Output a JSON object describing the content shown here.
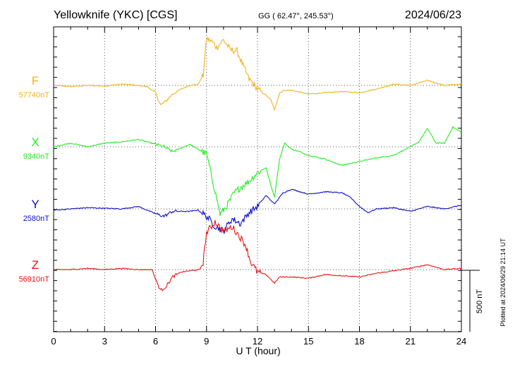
{
  "header": {
    "station": "Yellowknife (YKC)  [CGS]",
    "coords": "GG ( 62.47°, 245.53°)",
    "date": "2024/06/23"
  },
  "footer": {
    "plotted": "Plotted at 2024/06/29 21:14 UT"
  },
  "chart_data": {
    "type": "line",
    "xlabel": "U T (hour)",
    "xlim": [
      0,
      24
    ],
    "xticks": [
      "0",
      "3",
      "6",
      "9",
      "12",
      "15",
      "18",
      "21",
      "24"
    ],
    "scale_bar": {
      "label": "500 nT",
      "value_nT": 500
    },
    "series": [
      {
        "name": "F",
        "baseline_label": "57740nT",
        "baseline_nT": 57740,
        "color": "#f5b01e",
        "points": [
          [
            0,
            0
          ],
          [
            1,
            -10
          ],
          [
            2,
            0
          ],
          [
            3,
            -5
          ],
          [
            4,
            10
          ],
          [
            5,
            0
          ],
          [
            5.5,
            -10
          ],
          [
            6,
            -60
          ],
          [
            6.3,
            -160
          ],
          [
            6.6,
            -130
          ],
          [
            7,
            -70
          ],
          [
            7.5,
            -30
          ],
          [
            8,
            0
          ],
          [
            8.5,
            10
          ],
          [
            8.8,
            80
          ],
          [
            9,
            380
          ],
          [
            9.3,
            360
          ],
          [
            9.6,
            310
          ],
          [
            10,
            370
          ],
          [
            10.4,
            290
          ],
          [
            10.8,
            280
          ],
          [
            11,
            210
          ],
          [
            11.5,
            50
          ],
          [
            12,
            -30
          ],
          [
            12.5,
            -80
          ],
          [
            12.8,
            -120
          ],
          [
            13,
            -200
          ],
          [
            13.3,
            -60
          ],
          [
            13.6,
            -40
          ],
          [
            14,
            -40
          ],
          [
            15,
            -70
          ],
          [
            16,
            -60
          ],
          [
            17,
            -50
          ],
          [
            18,
            -60
          ],
          [
            19,
            -30
          ],
          [
            20,
            10
          ],
          [
            21,
            0
          ],
          [
            22,
            40
          ],
          [
            23,
            0
          ],
          [
            24,
            10
          ]
        ]
      },
      {
        "name": "X",
        "baseline_label": "9340nT",
        "baseline_nT": 9340,
        "color": "#22ee22",
        "points": [
          [
            0,
            0
          ],
          [
            1,
            30
          ],
          [
            2,
            0
          ],
          [
            3,
            30
          ],
          [
            4,
            40
          ],
          [
            5,
            60
          ],
          [
            6,
            20
          ],
          [
            6.5,
            0
          ],
          [
            7,
            -40
          ],
          [
            8,
            20
          ],
          [
            8.5,
            -20
          ],
          [
            9,
            -60
          ],
          [
            9.5,
            -360
          ],
          [
            9.8,
            -550
          ],
          [
            10.2,
            -480
          ],
          [
            10.6,
            -380
          ],
          [
            11,
            -330
          ],
          [
            11.5,
            -280
          ],
          [
            12,
            -210
          ],
          [
            12.5,
            -170
          ],
          [
            12.8,
            -320
          ],
          [
            13,
            -410
          ],
          [
            13.3,
            -100
          ],
          [
            13.6,
            30
          ],
          [
            14,
            -20
          ],
          [
            14.5,
            -40
          ],
          [
            15,
            -70
          ],
          [
            16,
            -100
          ],
          [
            16.5,
            -130
          ],
          [
            17,
            -150
          ],
          [
            18,
            -120
          ],
          [
            19,
            -90
          ],
          [
            20,
            -70
          ],
          [
            21,
            0
          ],
          [
            21.5,
            40
          ],
          [
            22,
            150
          ],
          [
            22.5,
            30
          ],
          [
            23,
            30
          ],
          [
            23.5,
            160
          ],
          [
            24,
            120
          ]
        ]
      },
      {
        "name": "Y",
        "baseline_label": "2580nT",
        "baseline_nT": 2580,
        "color": "#1010cc",
        "points": [
          [
            0,
            -10
          ],
          [
            1,
            0
          ],
          [
            2,
            10
          ],
          [
            3,
            5
          ],
          [
            4,
            0
          ],
          [
            5,
            20
          ],
          [
            6,
            -40
          ],
          [
            6.5,
            -60
          ],
          [
            7,
            -20
          ],
          [
            8,
            -20
          ],
          [
            8.5,
            -10
          ],
          [
            9,
            -60
          ],
          [
            9.5,
            -140
          ],
          [
            10,
            -180
          ],
          [
            10.5,
            -80
          ],
          [
            11,
            -120
          ],
          [
            11.5,
            -30
          ],
          [
            12,
            20
          ],
          [
            12.5,
            110
          ],
          [
            13,
            40
          ],
          [
            13.5,
            130
          ],
          [
            14,
            160
          ],
          [
            15,
            120
          ],
          [
            16,
            140
          ],
          [
            17,
            130
          ],
          [
            17.5,
            90
          ],
          [
            18,
            20
          ],
          [
            18.5,
            -30
          ],
          [
            19,
            0
          ],
          [
            20,
            10
          ],
          [
            21,
            -20
          ],
          [
            22,
            20
          ],
          [
            23,
            0
          ],
          [
            24,
            30
          ]
        ]
      },
      {
        "name": "Z",
        "baseline_label": "56910nT",
        "baseline_nT": 56910,
        "color": "#ee1111",
        "points": [
          [
            0,
            0
          ],
          [
            1,
            0
          ],
          [
            2,
            10
          ],
          [
            3,
            0
          ],
          [
            4,
            10
          ],
          [
            5,
            0
          ],
          [
            5.8,
            0
          ],
          [
            6,
            -80
          ],
          [
            6.3,
            -170
          ],
          [
            6.6,
            -140
          ],
          [
            7,
            -60
          ],
          [
            7.5,
            -20
          ],
          [
            8,
            -10
          ],
          [
            8.6,
            0
          ],
          [
            8.8,
            60
          ],
          [
            9,
            300
          ],
          [
            9.5,
            390
          ],
          [
            10,
            310
          ],
          [
            10.5,
            350
          ],
          [
            11,
            260
          ],
          [
            11.3,
            200
          ],
          [
            11.6,
            60
          ],
          [
            12,
            -20
          ],
          [
            12.5,
            -40
          ],
          [
            13,
            -110
          ],
          [
            13.3,
            -60
          ],
          [
            14,
            -60
          ],
          [
            15,
            -70
          ],
          [
            16,
            -40
          ],
          [
            17,
            -50
          ],
          [
            18,
            -60
          ],
          [
            19,
            -30
          ],
          [
            20,
            -10
          ],
          [
            21,
            10
          ],
          [
            22,
            40
          ],
          [
            23,
            0
          ],
          [
            24,
            10
          ]
        ]
      }
    ]
  }
}
